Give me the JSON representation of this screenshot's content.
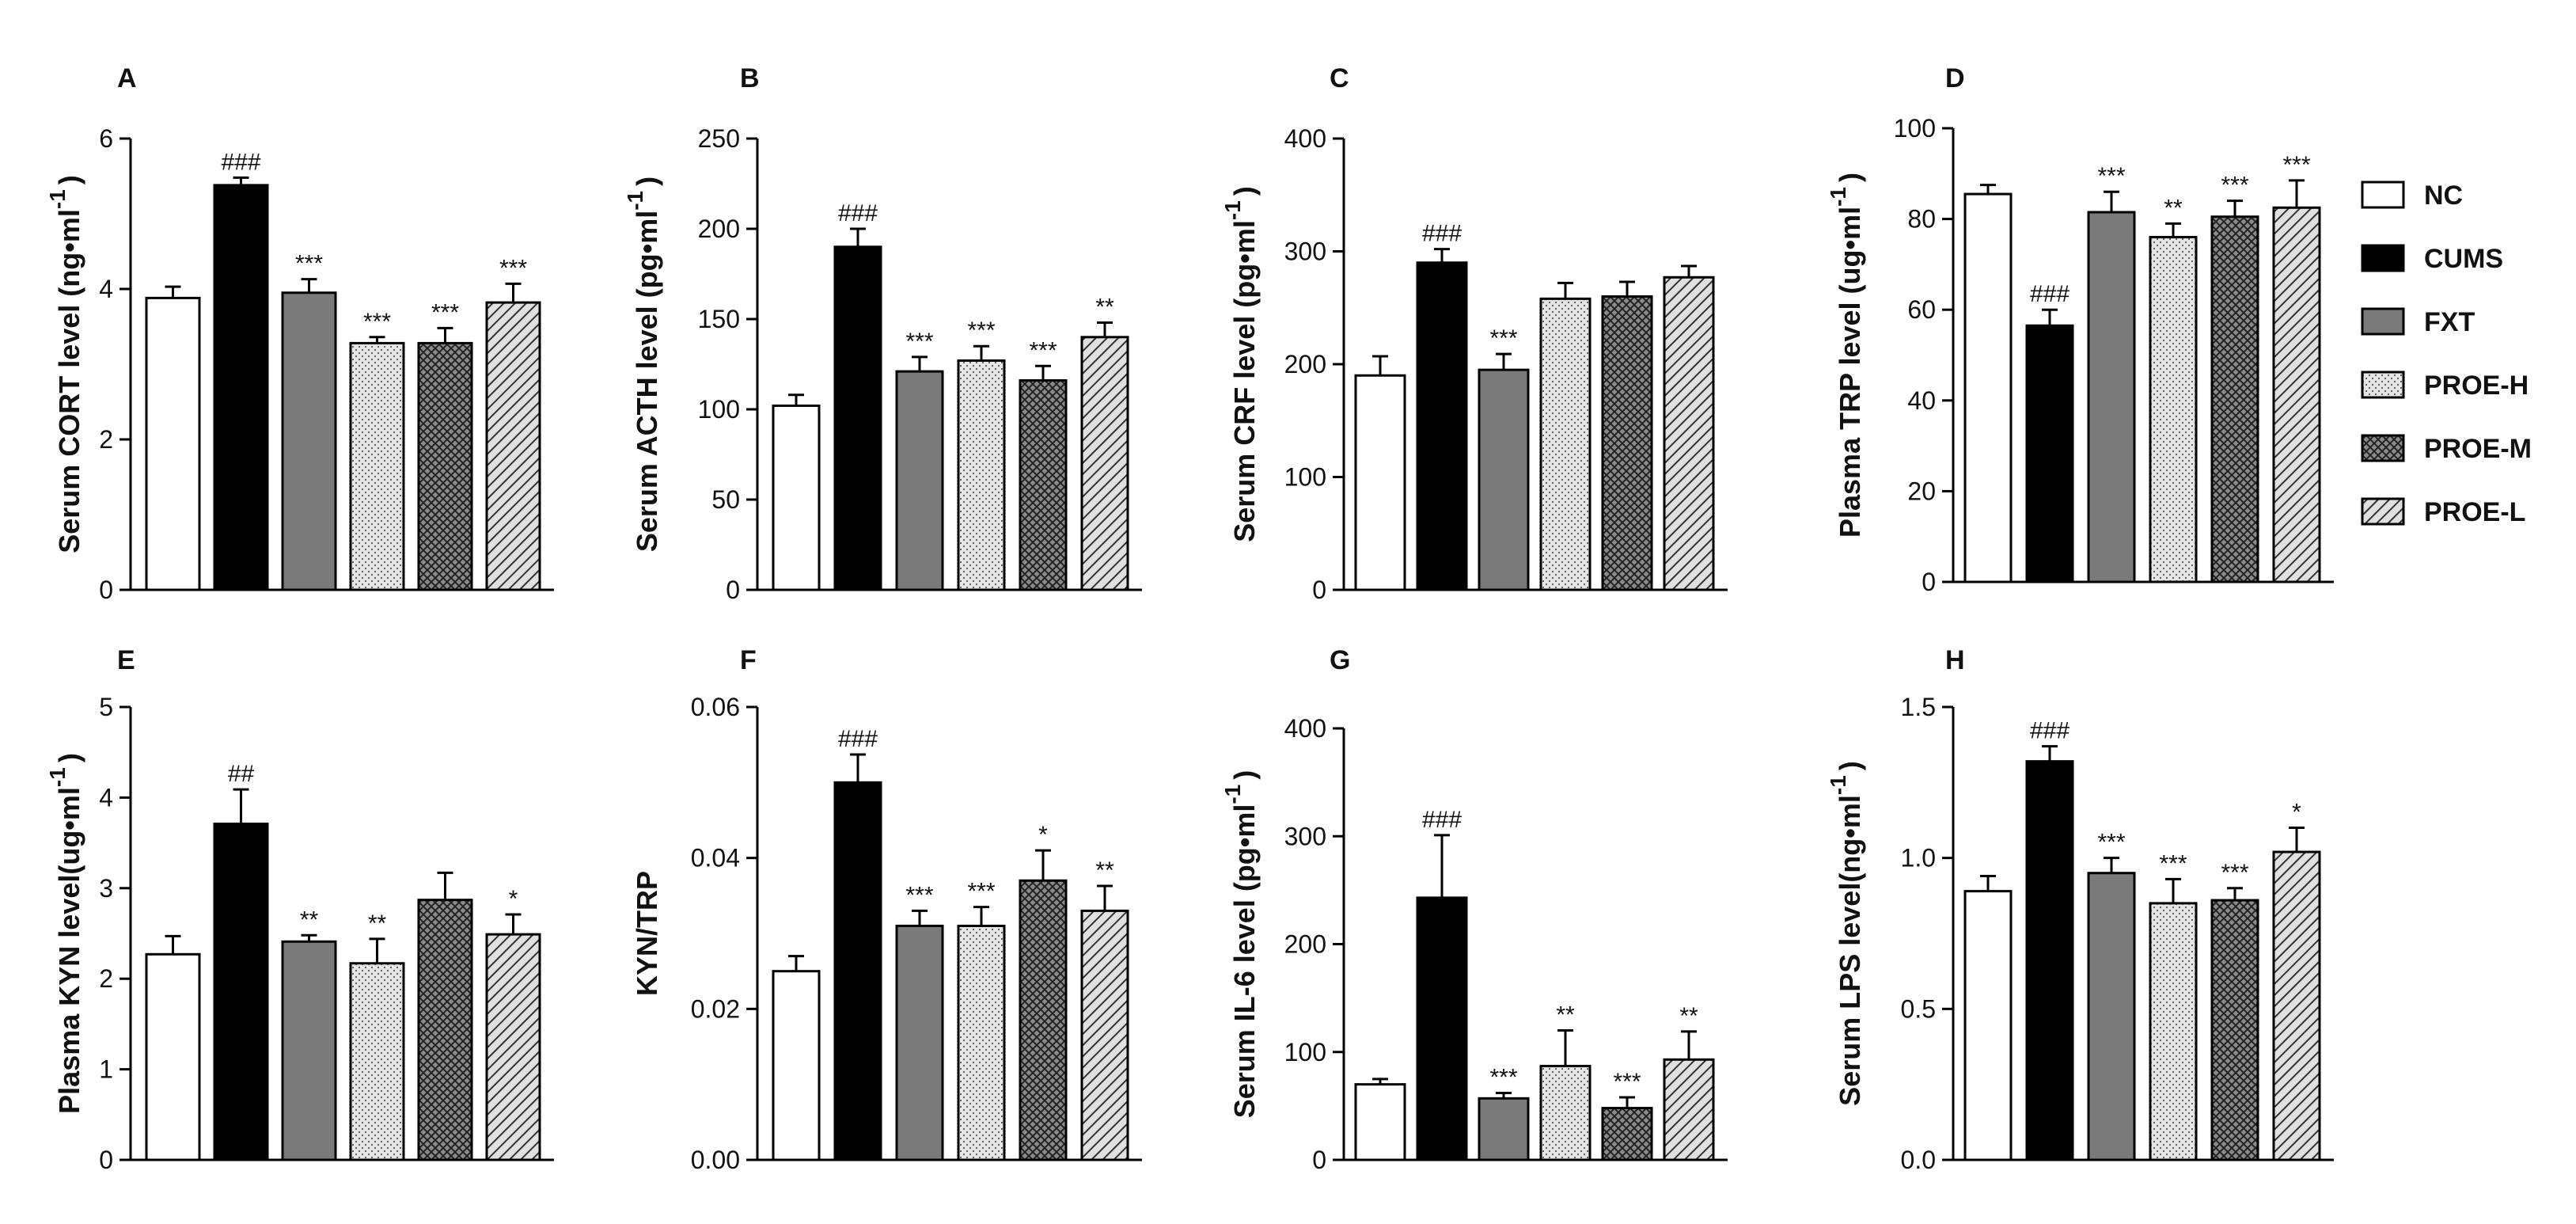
{
  "groups": [
    "NC",
    "CUMS",
    "FXT",
    "PROE-H",
    "PROE-M",
    "PROE-L"
  ],
  "group_styles": {
    "NC": {
      "fill": "#ffffff",
      "pattern": "none"
    },
    "CUMS": {
      "fill": "#000000",
      "pattern": "none"
    },
    "FXT": {
      "fill": "#7a7a7a",
      "pattern": "none"
    },
    "PROE-H": {
      "fill": "#e6e6e6",
      "pattern": "dots"
    },
    "PROE-M": {
      "fill": "#7a7a7a",
      "pattern": "crosshatch"
    },
    "PROE-L": {
      "fill": "#d0d0d0",
      "pattern": "diagonal"
    }
  },
  "chart_data": [
    {
      "panel": "A",
      "type": "bar",
      "ylabel": "Serum CORT level  (ng•ml",
      "ylabel_sup": "-1",
      "ylabel_close": ")",
      "ylim": [
        0,
        6
      ],
      "ticks": [
        0,
        2,
        4,
        6
      ],
      "tick_labels": [
        "0",
        "2",
        "4",
        "6"
      ],
      "values": [
        3.88,
        5.38,
        3.95,
        3.28,
        3.28,
        3.82
      ],
      "errors": [
        0.15,
        0.1,
        0.18,
        0.08,
        0.2,
        0.25
      ],
      "sig": [
        "",
        "###",
        "***",
        "***",
        "***",
        "***"
      ]
    },
    {
      "panel": "B",
      "type": "bar",
      "ylabel": "Serum ACTH level (pg•ml",
      "ylabel_sup": "-1",
      "ylabel_close": ")",
      "ylim": [
        0,
        250
      ],
      "ticks": [
        0,
        50,
        100,
        150,
        200,
        250
      ],
      "tick_labels": [
        "0",
        "50",
        "100",
        "150",
        "200",
        "250"
      ],
      "values": [
        102,
        190,
        121,
        127,
        116,
        140
      ],
      "errors": [
        6,
        10,
        8,
        8,
        8,
        8
      ],
      "sig": [
        "",
        "###",
        "***",
        "***",
        "***",
        "**"
      ]
    },
    {
      "panel": "C",
      "type": "bar",
      "ylabel": "Serum CRF level (pg•ml",
      "ylabel_sup": "-1",
      "ylabel_close": ")",
      "ylim": [
        0,
        400
      ],
      "ticks": [
        0,
        100,
        200,
        300,
        400
      ],
      "tick_labels": [
        "0",
        "100",
        "200",
        "300",
        "400"
      ],
      "values": [
        190,
        290,
        195,
        258,
        260,
        277
      ],
      "errors": [
        17,
        12,
        14,
        14,
        13,
        10
      ],
      "sig": [
        "",
        "###",
        "***",
        "",
        "",
        ""
      ]
    },
    {
      "panel": "D",
      "type": "bar",
      "ylabel": "Plasma TRP level (ug•ml",
      "ylabel_sup": "-1",
      "ylabel_close": ")",
      "ylim": [
        0,
        100
      ],
      "ticks": [
        0,
        20,
        40,
        60,
        80,
        100
      ],
      "tick_labels": [
        "0",
        "20",
        "40",
        "60",
        "80",
        "100"
      ],
      "values": [
        85.5,
        56.5,
        81.5,
        76,
        80.5,
        82.5
      ],
      "errors": [
        2,
        3.5,
        4.5,
        3,
        3.5,
        6
      ],
      "sig": [
        "",
        "###",
        "***",
        "**",
        "***",
        "***"
      ]
    },
    {
      "panel": "E",
      "type": "bar",
      "ylabel": "Plasma KYN level(ug•ml",
      "ylabel_sup": "-1",
      "ylabel_close": ")",
      "ylim": [
        0,
        5
      ],
      "ticks": [
        0,
        1,
        2,
        3,
        4,
        5
      ],
      "tick_labels": [
        "0",
        "1",
        "2",
        "3",
        "4",
        "5"
      ],
      "values": [
        2.27,
        3.71,
        2.41,
        2.17,
        2.87,
        2.49
      ],
      "errors": [
        0.2,
        0.38,
        0.07,
        0.27,
        0.3,
        0.22
      ],
      "sig": [
        "",
        "##",
        "**",
        "**",
        "",
        "*"
      ]
    },
    {
      "panel": "F",
      "type": "bar",
      "ylabel": "KYN/TRP",
      "ylabel_sup": "",
      "ylabel_close": "",
      "ylim": [
        0,
        0.06
      ],
      "ticks": [
        0,
        0.02,
        0.04,
        0.06
      ],
      "tick_labels": [
        "0.00",
        "0.02",
        "0.04",
        "0.06"
      ],
      "values": [
        0.025,
        0.05,
        0.031,
        0.031,
        0.037,
        0.033
      ],
      "errors": [
        0.002,
        0.0037,
        0.002,
        0.0025,
        0.004,
        0.0033
      ],
      "sig": [
        "",
        "###",
        "***",
        "***",
        "*",
        "**"
      ]
    },
    {
      "panel": "G",
      "type": "bar",
      "ylabel": "Serum IL-6  level  (pg•ml",
      "ylabel_sup": "-1",
      "ylabel_close": ")",
      "ylim": [
        0,
        400
      ],
      "ticks": [
        0,
        100,
        200,
        300,
        400
      ],
      "tick_labels": [
        "0",
        "100",
        "200",
        "300",
        "400"
      ],
      "values": [
        70,
        243,
        57,
        87,
        48,
        93
      ],
      "errors": [
        5,
        58,
        5,
        33,
        10,
        26
      ],
      "sig": [
        "",
        "###",
        "***",
        "**",
        "***",
        "**"
      ]
    },
    {
      "panel": "H",
      "type": "bar",
      "ylabel": "Serum LPS  level(ng•ml",
      "ylabel_sup": "-1",
      "ylabel_close": ")",
      "ylim": [
        0,
        1.5
      ],
      "ticks": [
        0,
        0.5,
        1.0,
        1.5
      ],
      "tick_labels": [
        "0.0",
        "0.5",
        "1.0",
        "1.5"
      ],
      "values": [
        0.89,
        1.32,
        0.95,
        0.85,
        0.86,
        1.02
      ],
      "errors": [
        0.05,
        0.05,
        0.05,
        0.08,
        0.04,
        0.08
      ],
      "sig": [
        "",
        "###",
        "***",
        "***",
        "***",
        "*"
      ]
    }
  ]
}
